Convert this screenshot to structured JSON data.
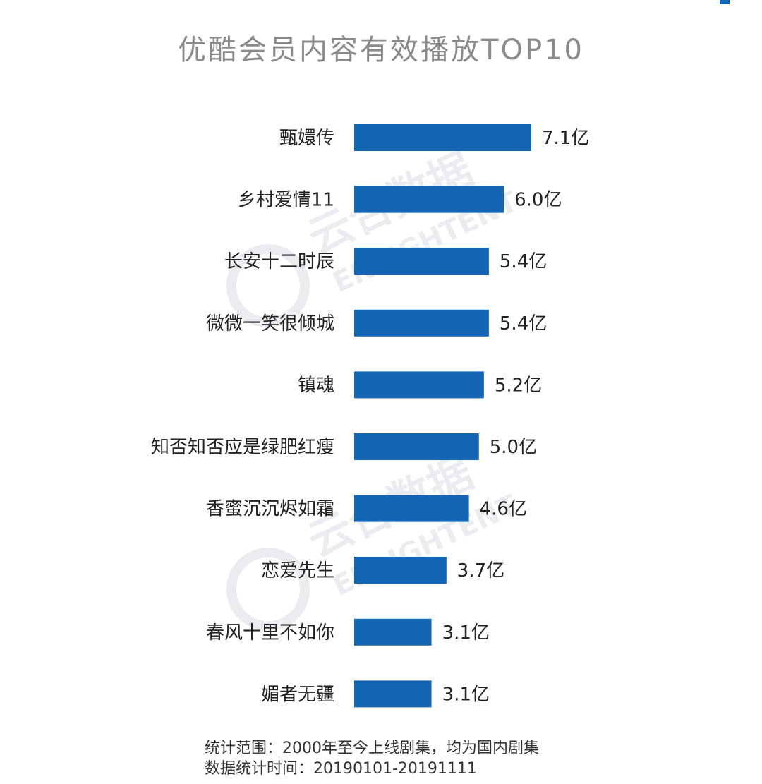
{
  "chart_data": {
    "type": "bar",
    "orientation": "horizontal",
    "title": "优酷会员内容有效播放TOP10",
    "categories": [
      "甄嬛传",
      "乡村爱情11",
      "长安十二时辰",
      "微微一笑很倾城",
      "镇魂",
      "知否知否应是绿肥红瘦",
      "香蜜沉沉烬如霜",
      "恋爱先生",
      "春风十里不如你",
      "媚者无疆"
    ],
    "values": [
      7.1,
      6.0,
      5.4,
      5.4,
      5.2,
      5.0,
      4.6,
      3.7,
      3.1,
      3.1
    ],
    "value_labels": [
      "7.1亿",
      "6.0亿",
      "5.4亿",
      "5.4亿",
      "5.2亿",
      "5.0亿",
      "4.6亿",
      "3.7亿",
      "3.1亿",
      "3.1亿"
    ],
    "unit": "亿",
    "xlim": [
      0,
      7.1
    ],
    "grid": false,
    "legend": "none",
    "bar_color": "#1565b5"
  },
  "watermark": {
    "cn": "云合数据",
    "en": "ENLIGHTENT"
  },
  "notes": [
    "统计范围：2000年至今上线剧集，均为国内剧集",
    "数据统计时间：20190101-20191111"
  ],
  "colors": {
    "title": "#8a8a8a",
    "text": "#222222",
    "watermark": "#d9dde3"
  }
}
